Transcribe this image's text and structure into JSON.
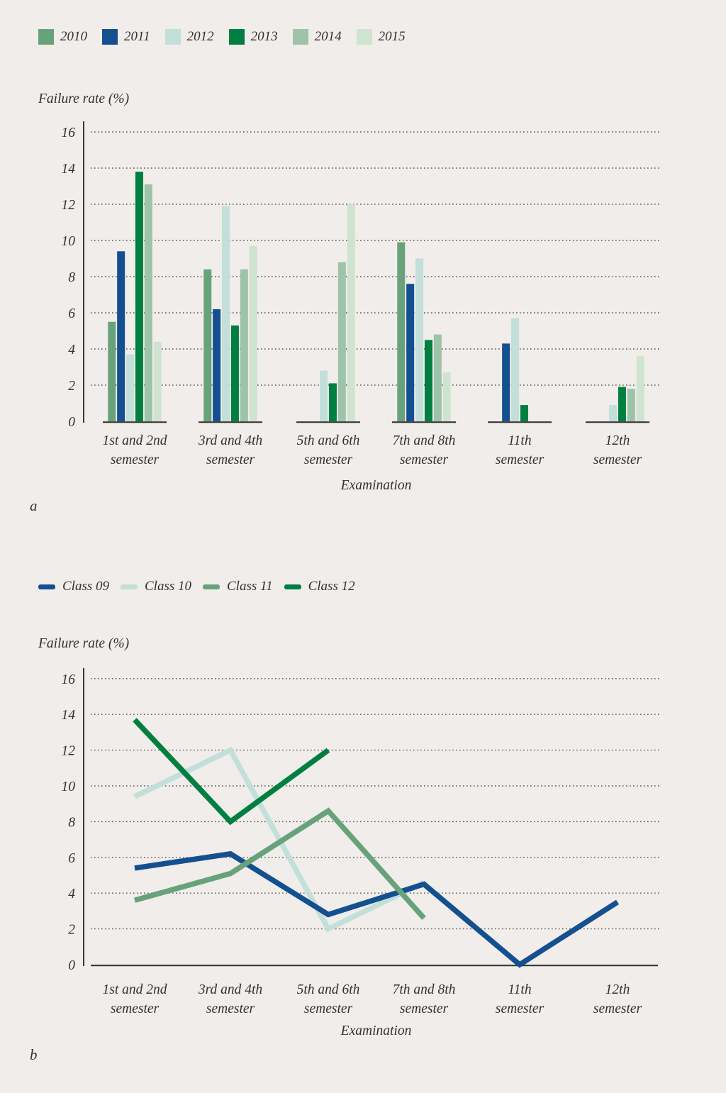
{
  "page": {
    "background": "#f0edea",
    "text_color": "#35312d",
    "panel_a_label": "a",
    "panel_b_label": "b"
  },
  "chart_data": [
    {
      "type": "bar",
      "title": "",
      "ylabel": "Failure rate (%)",
      "xlabel": "Examination",
      "ylim": [
        0,
        16
      ],
      "ytick_step": 2,
      "grid": "dotted horizontal gridlines",
      "legend_position": "top-left",
      "categories": [
        [
          "1st and 2nd",
          "semester"
        ],
        [
          "3rd and 4th",
          "semester"
        ],
        [
          "5th and 6th",
          "semester"
        ],
        [
          "7th and 8th",
          "semester"
        ],
        [
          "11th",
          "semester"
        ],
        [
          "12th",
          "semester"
        ]
      ],
      "series": [
        {
          "name": "2010",
          "color": "#68a27b",
          "values": [
            5.5,
            8.4,
            null,
            9.9,
            null,
            null
          ]
        },
        {
          "name": "2011",
          "color": "#14508f",
          "values": [
            9.4,
            6.2,
            null,
            7.6,
            4.3,
            null
          ]
        },
        {
          "name": "2012",
          "color": "#c2dfda",
          "values": [
            3.7,
            11.9,
            2.8,
            9.0,
            5.7,
            0.9
          ]
        },
        {
          "name": "2013",
          "color": "#007f41",
          "values": [
            13.8,
            5.3,
            2.1,
            4.5,
            0.9,
            1.9
          ]
        },
        {
          "name": "2014",
          "color": "#9dc3a8",
          "values": [
            13.1,
            8.4,
            8.8,
            4.8,
            null,
            1.8
          ]
        },
        {
          "name": "2015",
          "color": "#cfe4d0",
          "values": [
            4.4,
            9.7,
            12.0,
            2.7,
            null,
            3.6
          ]
        }
      ]
    },
    {
      "type": "line",
      "title": "",
      "ylabel": "Failure rate (%)",
      "xlabel": "Examination",
      "ylim": [
        0,
        16
      ],
      "ytick_step": 2,
      "grid": "dotted horizontal gridlines",
      "legend_position": "top-left",
      "categories": [
        [
          "1st and 2nd",
          "semester"
        ],
        [
          "3rd and 4th",
          "semester"
        ],
        [
          "5th and 6th",
          "semester"
        ],
        [
          "7th and 8th",
          "semester"
        ],
        [
          "11th",
          "semester"
        ],
        [
          "12th",
          "semester"
        ]
      ],
      "series": [
        {
          "name": "Class 09",
          "color": "#14508f",
          "values": [
            5.4,
            6.2,
            2.8,
            4.5,
            0,
            3.5
          ]
        },
        {
          "name": "Class 10",
          "color": "#c2dfda",
          "values": [
            9.4,
            12.0,
            2.0,
            4.6,
            null,
            null
          ]
        },
        {
          "name": "Class 11",
          "color": "#68a27b",
          "values": [
            3.6,
            5.1,
            8.6,
            2.6,
            null,
            null
          ]
        },
        {
          "name": "Class 12",
          "color": "#007f41",
          "values": [
            13.7,
            8.0,
            12.0,
            null,
            null,
            null
          ]
        }
      ]
    }
  ]
}
